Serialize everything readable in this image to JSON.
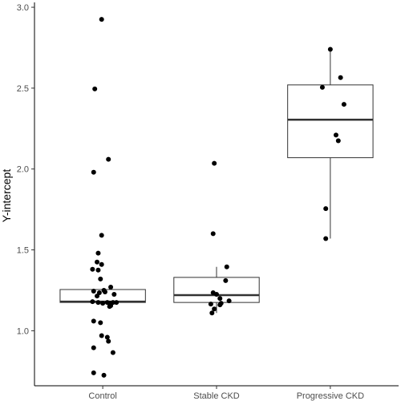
{
  "chart_data": {
    "type": "scatter",
    "subtype": "boxplot-with-jittered-points",
    "title": "",
    "xlabel": "",
    "ylabel": "Y-intercept",
    "categories": [
      "Control",
      "Stable CKD",
      "Progressive CKD"
    ],
    "ylim": [
      0.66,
      3.03
    ],
    "y_ticks": [
      1.0,
      1.5,
      2.0,
      2.5,
      3.0
    ],
    "y_tick_labels": [
      "1.0",
      "1.5",
      "2.0",
      "2.5",
      "3.0"
    ],
    "grid": false,
    "legend": "none",
    "colors": {
      "point": "#000000",
      "box_line": "#333333",
      "box_fill": "#ffffff",
      "axis": "#000000"
    },
    "boxes": [
      {
        "category": "Control",
        "q1": 1.175,
        "median": 1.18,
        "q3": 1.255,
        "whisker_low": 1.175,
        "whisker_high": 1.255
      },
      {
        "category": "Stable CKD",
        "q1": 1.175,
        "median": 1.22,
        "q3": 1.33,
        "whisker_low": 1.11,
        "whisker_high": 1.395
      },
      {
        "category": "Progressive CKD",
        "q1": 2.07,
        "median": 2.305,
        "q3": 2.52,
        "whisker_low": 1.57,
        "whisker_high": 2.74
      }
    ],
    "series": [
      {
        "category": "Control",
        "points": [
          {
            "x": 0.99,
            "y": 2.925
          },
          {
            "x": 0.93,
            "y": 2.495
          },
          {
            "x": 1.05,
            "y": 2.06
          },
          {
            "x": 0.92,
            "y": 1.98
          },
          {
            "x": 0.99,
            "y": 1.59
          },
          {
            "x": 0.96,
            "y": 1.48
          },
          {
            "x": 0.95,
            "y": 1.425
          },
          {
            "x": 0.99,
            "y": 1.41
          },
          {
            "x": 0.91,
            "y": 1.38
          },
          {
            "x": 0.96,
            "y": 1.375
          },
          {
            "x": 0.98,
            "y": 1.32
          },
          {
            "x": 1.07,
            "y": 1.27
          },
          {
            "x": 1.01,
            "y": 1.25
          },
          {
            "x": 0.92,
            "y": 1.245
          },
          {
            "x": 1.02,
            "y": 1.24
          },
          {
            "x": 0.97,
            "y": 1.235
          },
          {
            "x": 1.1,
            "y": 1.225
          },
          {
            "x": 0.95,
            "y": 1.215
          },
          {
            "x": 0.91,
            "y": 1.18
          },
          {
            "x": 0.96,
            "y": 1.175
          },
          {
            "x": 1.0,
            "y": 1.17
          },
          {
            "x": 1.04,
            "y": 1.175
          },
          {
            "x": 1.06,
            "y": 1.17
          },
          {
            "x": 1.09,
            "y": 1.175
          },
          {
            "x": 1.12,
            "y": 1.175
          },
          {
            "x": 1.07,
            "y": 1.155
          },
          {
            "x": 1.06,
            "y": 1.15
          },
          {
            "x": 0.92,
            "y": 1.06
          },
          {
            "x": 0.98,
            "y": 1.05
          },
          {
            "x": 0.99,
            "y": 0.97
          },
          {
            "x": 1.04,
            "y": 0.96
          },
          {
            "x": 1.05,
            "y": 0.935
          },
          {
            "x": 0.92,
            "y": 0.895
          },
          {
            "x": 1.09,
            "y": 0.865
          },
          {
            "x": 0.92,
            "y": 0.74
          },
          {
            "x": 1.01,
            "y": 0.725
          }
        ]
      },
      {
        "category": "Stable CKD",
        "points": [
          {
            "x": 1.98,
            "y": 2.035
          },
          {
            "x": 1.97,
            "y": 1.6
          },
          {
            "x": 2.09,
            "y": 1.395
          },
          {
            "x": 2.08,
            "y": 1.31
          },
          {
            "x": 1.97,
            "y": 1.235
          },
          {
            "x": 2.0,
            "y": 1.225
          },
          {
            "x": 2.03,
            "y": 1.2
          },
          {
            "x": 2.11,
            "y": 1.185
          },
          {
            "x": 1.95,
            "y": 1.165
          },
          {
            "x": 2.04,
            "y": 1.17
          },
          {
            "x": 2.03,
            "y": 1.16
          },
          {
            "x": 1.98,
            "y": 1.135
          },
          {
            "x": 1.96,
            "y": 1.11
          }
        ]
      },
      {
        "category": "Progressive CKD",
        "points": [
          {
            "x": 3.0,
            "y": 2.74
          },
          {
            "x": 3.09,
            "y": 2.565
          },
          {
            "x": 2.93,
            "y": 2.505
          },
          {
            "x": 3.12,
            "y": 2.4
          },
          {
            "x": 3.05,
            "y": 2.21
          },
          {
            "x": 3.07,
            "y": 2.175
          },
          {
            "x": 2.96,
            "y": 1.755
          },
          {
            "x": 2.96,
            "y": 1.57
          }
        ]
      }
    ]
  }
}
